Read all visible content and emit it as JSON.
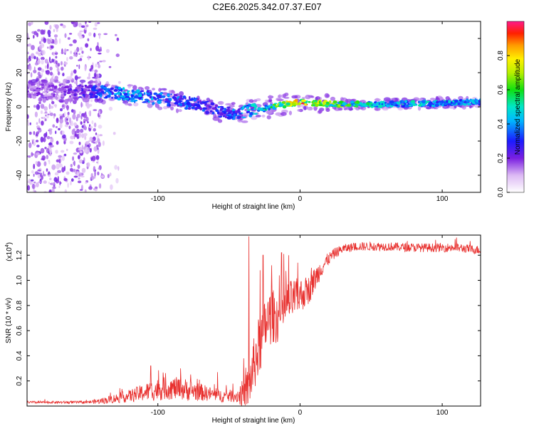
{
  "title": "C2E6.2025.342.07.37.E07",
  "chart_data": [
    {
      "type": "heatmap",
      "xlabel": "Height of straight line (km)",
      "ylabel": "Frequency (Hz)",
      "xlim": [
        -192,
        127
      ],
      "ylim": [
        -50,
        50
      ],
      "xticks": [
        -100,
        0,
        100
      ],
      "xtick_labels": [
        "-100",
        "0",
        "100"
      ],
      "yticks": [
        -40,
        -20,
        0,
        20,
        40
      ],
      "ytick_labels": [
        "-40",
        "-20",
        "0",
        "20",
        "40"
      ],
      "colorbar": {
        "label": "Normalized spectral amplitude",
        "range": [
          0,
          1
        ],
        "ticks": [
          0.0,
          0.2,
          0.4,
          0.6,
          0.8
        ],
        "tick_labels": [
          "0.0",
          "0.2",
          "0.4",
          "0.6",
          "0.8"
        ]
      },
      "ridge": {
        "x": [
          -190,
          -170,
          -150,
          -130,
          -110,
          -90,
          -70,
          -55,
          -45,
          -35,
          -25,
          -15,
          -5,
          0,
          5,
          15,
          30,
          50,
          70,
          90,
          110,
          127
        ],
        "freq": [
          10,
          9.5,
          9,
          8,
          6,
          4,
          1,
          -3,
          -4,
          -2,
          -1,
          1,
          2,
          3,
          2.5,
          2,
          1.5,
          1.5,
          1.7,
          2,
          2.5,
          3
        ],
        "amplitude": [
          0.2,
          0.2,
          0.3,
          0.45,
          0.45,
          0.4,
          0.35,
          0.35,
          0.4,
          0.5,
          0.55,
          0.7,
          0.9,
          0.95,
          0.9,
          0.8,
          0.65,
          0.55,
          0.5,
          0.5,
          0.48,
          0.45
        ]
      }
    },
    {
      "type": "line",
      "xlabel": "Height of straight line (km)",
      "ylabel": "SNR (10 * v/v)",
      "y_multiplier": "(x10",
      "y_exponent": "4",
      "y_multiplier_close": ")",
      "xlim": [
        -192,
        127
      ],
      "ylim": [
        0,
        1.36
      ],
      "xticks": [
        -100,
        0,
        100
      ],
      "xtick_labels": [
        "-100",
        "0",
        "100"
      ],
      "yticks": [
        0.2,
        0.4,
        0.6,
        0.8,
        1.0,
        1.2
      ],
      "ytick_labels": [
        "0.2",
        "0.4",
        "0.6",
        "0.8",
        "1.0",
        "1.2"
      ],
      "series": [
        {
          "name": "SNR",
          "color": "#e8302e",
          "anchors_x": [
            -192,
            -150,
            -140,
            -120,
            -105,
            -95,
            -85,
            -75,
            -65,
            -55,
            -45,
            -38,
            -35,
            -32,
            -28,
            -24,
            -20,
            -15,
            -10,
            -5,
            0,
            3,
            6,
            10,
            15,
            20,
            25,
            30,
            40,
            60,
            80,
            100,
            110,
            127
          ],
          "anchors_y": [
            0.03,
            0.03,
            0.04,
            0.08,
            0.12,
            0.14,
            0.14,
            0.12,
            0.1,
            0.08,
            0.08,
            0.1,
            0.2,
            0.35,
            0.5,
            0.65,
            0.72,
            0.7,
            0.8,
            0.85,
            0.88,
            0.9,
            0.92,
            1.0,
            1.1,
            1.17,
            1.22,
            1.25,
            1.27,
            1.27,
            1.26,
            1.26,
            1.26,
            1.24
          ],
          "noise_x": [
            -192,
            -150,
            -120,
            -100,
            -80,
            -60,
            -45,
            -38,
            -30,
            -20,
            -10,
            0,
            10,
            20,
            30,
            127
          ],
          "noise_amp": [
            0.01,
            0.01,
            0.05,
            0.09,
            0.09,
            0.05,
            0.05,
            0.15,
            0.25,
            0.22,
            0.18,
            0.14,
            0.1,
            0.05,
            0.035,
            0.035
          ],
          "peaks_x": [
            -105,
            -84,
            -58,
            -36,
            -28,
            -26,
            -20,
            -13,
            -8,
            8,
            110
          ],
          "peaks_y": [
            0.32,
            0.3,
            0.27,
            1.35,
            1.08,
            1.2,
            1.12,
            1.22,
            1.2,
            1.1,
            1.34
          ]
        }
      ]
    }
  ]
}
